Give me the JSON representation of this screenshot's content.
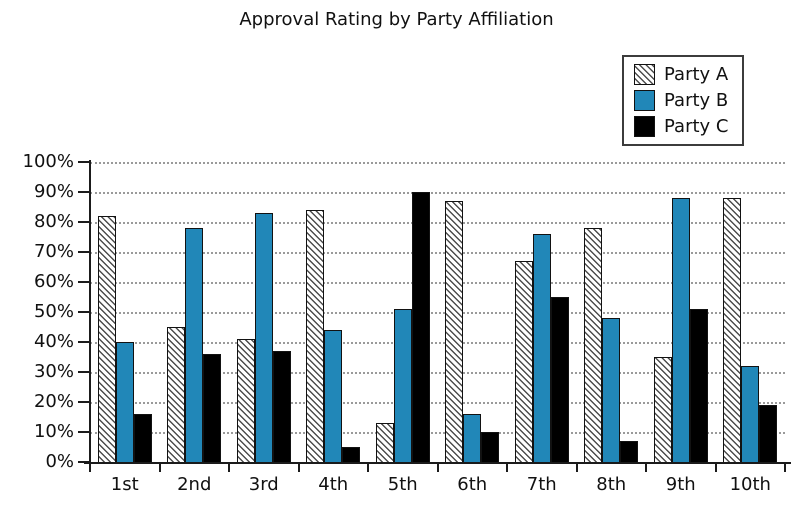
{
  "title": "Approval Rating by Party Affiliation",
  "colors": {
    "party_a": "hatch-diagonal-on-white",
    "party_b": "#2187B8",
    "party_c": "#000000",
    "grid": "#9a9a9a",
    "axis": "#1b1b1b"
  },
  "chart_data": {
    "type": "bar",
    "title": "Approval Rating by Party Affiliation",
    "categories": [
      "1st",
      "2nd",
      "3rd",
      "4th",
      "5th",
      "6th",
      "7th",
      "8th",
      "9th",
      "10th"
    ],
    "series": [
      {
        "name": "Party A",
        "style": "hatch",
        "values": [
          82,
          45,
          41,
          84,
          13,
          87,
          67,
          78,
          35,
          88
        ]
      },
      {
        "name": "Party B",
        "style": "blue",
        "values": [
          40,
          78,
          83,
          44,
          51,
          16,
          76,
          48,
          88,
          32
        ]
      },
      {
        "name": "Party C",
        "style": "black",
        "values": [
          16,
          36,
          37,
          5,
          90,
          10,
          55,
          7,
          51,
          19
        ]
      }
    ],
    "xlabel": "",
    "ylabel": "",
    "ylim": [
      0,
      100
    ],
    "ytick_labels": [
      "100%",
      "90%",
      "80%",
      "70%",
      "60%",
      "50%",
      "40%",
      "30%",
      "20%",
      "10%",
      "0%"
    ],
    "grid": "horizontal-dotted",
    "legend_position": "top-right"
  }
}
